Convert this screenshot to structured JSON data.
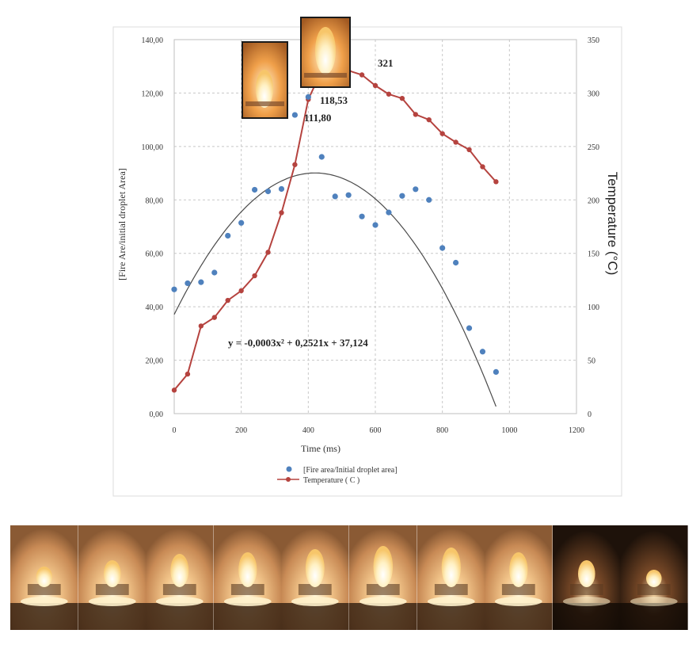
{
  "chart_data": {
    "type": "scatter",
    "xlabel": "Time (ms)",
    "ylabel_left": "[Fire Are/initial droplet Area]",
    "ylabel_right": "Temperature (°C)",
    "xlim": [
      0,
      1200
    ],
    "ylim_left": [
      0,
      140
    ],
    "ylim_right": [
      0,
      350
    ],
    "x_ticks": [
      "0",
      "200",
      "400",
      "600",
      "800",
      "1000",
      "1200"
    ],
    "y_ticks_left": [
      "0,00",
      "20,00",
      "40,00",
      "60,00",
      "80,00",
      "100,00",
      "120,00",
      "140,00"
    ],
    "y_ticks_right": [
      "0",
      "50",
      "100",
      "150",
      "200",
      "250",
      "300",
      "350"
    ],
    "grid": true,
    "legend_position": "bottom",
    "series": [
      {
        "name": "[Fire area/Initial droplet area]",
        "kind": "scatter",
        "color": "#4f81bd",
        "x": [
          0,
          40,
          80,
          120,
          160,
          200,
          240,
          280,
          320,
          360,
          400,
          440,
          480,
          520,
          560,
          600,
          640,
          680,
          720,
          760,
          800,
          840,
          880,
          920,
          960
        ],
        "y": [
          46.5,
          48.8,
          49.2,
          52.8,
          66.6,
          71.4,
          83.8,
          83.2,
          84.1,
          111.8,
          118.53,
          96.1,
          81.3,
          81.8,
          73.8,
          70.6,
          75.3,
          81.5,
          84.0,
          80.0,
          62.0,
          56.5,
          32.0,
          23.2,
          15.6
        ]
      },
      {
        "name": "Temperature ( C )",
        "kind": "line",
        "color": "#b5433f",
        "x": [
          0,
          40,
          80,
          120,
          160,
          200,
          240,
          280,
          320,
          360,
          400,
          440,
          480,
          520,
          560,
          600,
          640,
          680,
          720,
          760,
          800,
          840,
          880,
          920,
          960
        ],
        "y": [
          22,
          37,
          82,
          90,
          106,
          115,
          129,
          151,
          188,
          233,
          294,
          321,
          320,
          321,
          317,
          307,
          299,
          295,
          280,
          275,
          262,
          254,
          247,
          231,
          217
        ]
      }
    ],
    "trendline": {
      "label": "y = -0,0003x² + 0,2521x + 37,124",
      "a": -0.0003,
      "b": 0.2521,
      "c": 37.124,
      "x_range": [
        0,
        960
      ],
      "color": "#4a4a4a"
    },
    "annotations": [
      {
        "text": "321",
        "x": 440,
        "y_right": 321
      },
      {
        "text": "118,53",
        "x": 400,
        "y": 118.53
      },
      {
        "text": "111,80",
        "x": 360,
        "y": 111.8
      }
    ]
  },
  "images": {
    "flame_frames_count": 10
  }
}
